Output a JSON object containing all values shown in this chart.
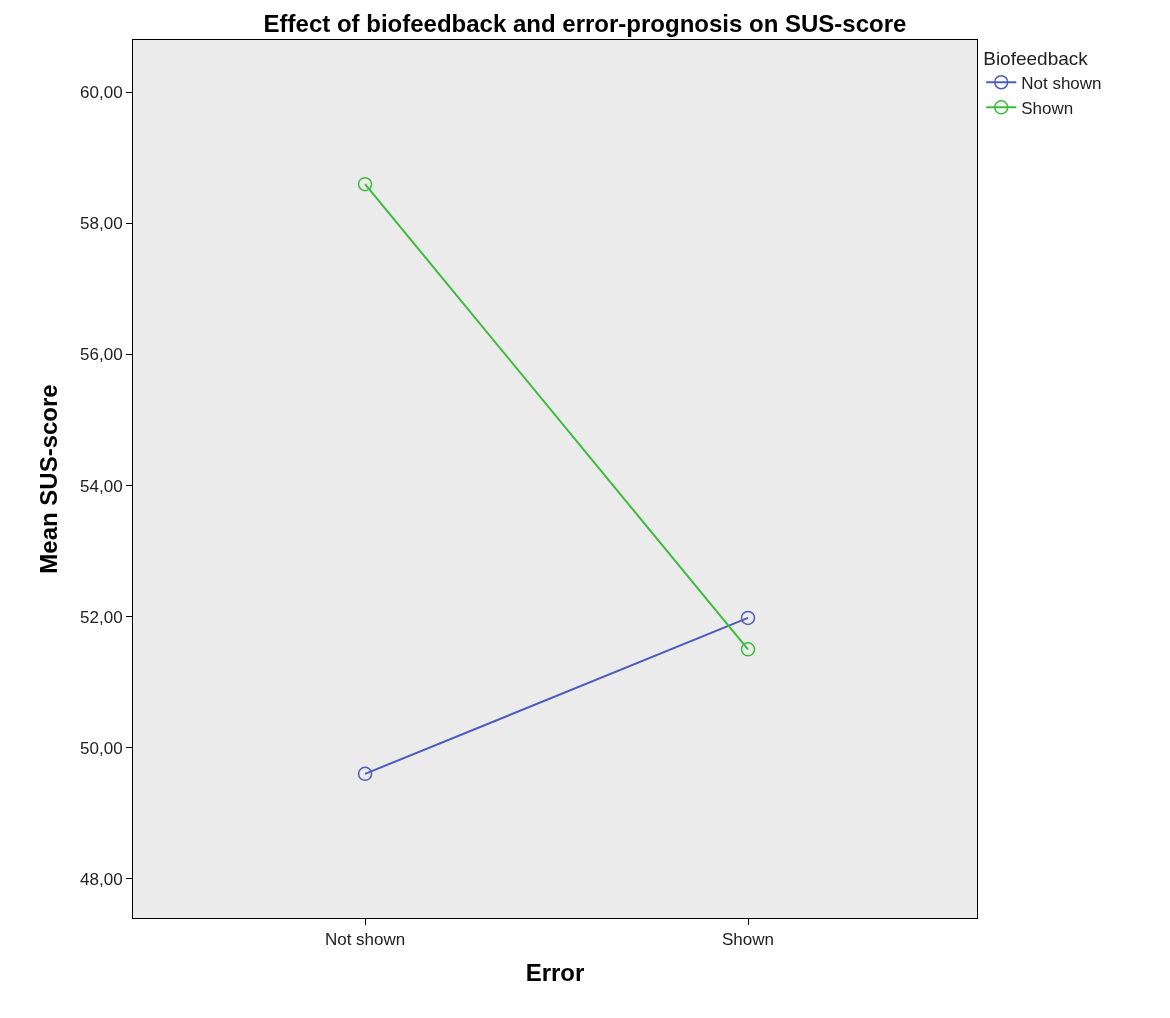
{
  "chart_data": {
    "type": "line",
    "title": "Effect of biofeedback and error-prognosis on SUS-score",
    "xlabel": "Error",
    "ylabel": "Mean SUS-score",
    "legend_title": "Biofeedback",
    "categories": [
      "Not shown",
      "Shown"
    ],
    "series": [
      {
        "name": "Not shown",
        "color": "#4c5cbc",
        "values": [
          49.6,
          51.98
        ]
      },
      {
        "name": "Shown",
        "color": "#3cbc3c",
        "values": [
          58.6,
          51.5
        ]
      }
    ],
    "ylim": [
      47.4,
      60.8
    ],
    "yticks": [
      {
        "value": 48,
        "label": "48,00"
      },
      {
        "value": 50,
        "label": "50,00"
      },
      {
        "value": 52,
        "label": "52,00"
      },
      {
        "value": 54,
        "label": "54,00"
      },
      {
        "value": 56,
        "label": "56,00"
      },
      {
        "value": 58,
        "label": "58,00"
      },
      {
        "value": 60,
        "label": "60,00"
      }
    ],
    "grid": false,
    "legend": "top right",
    "marker": "circle",
    "line_style": "solid"
  }
}
